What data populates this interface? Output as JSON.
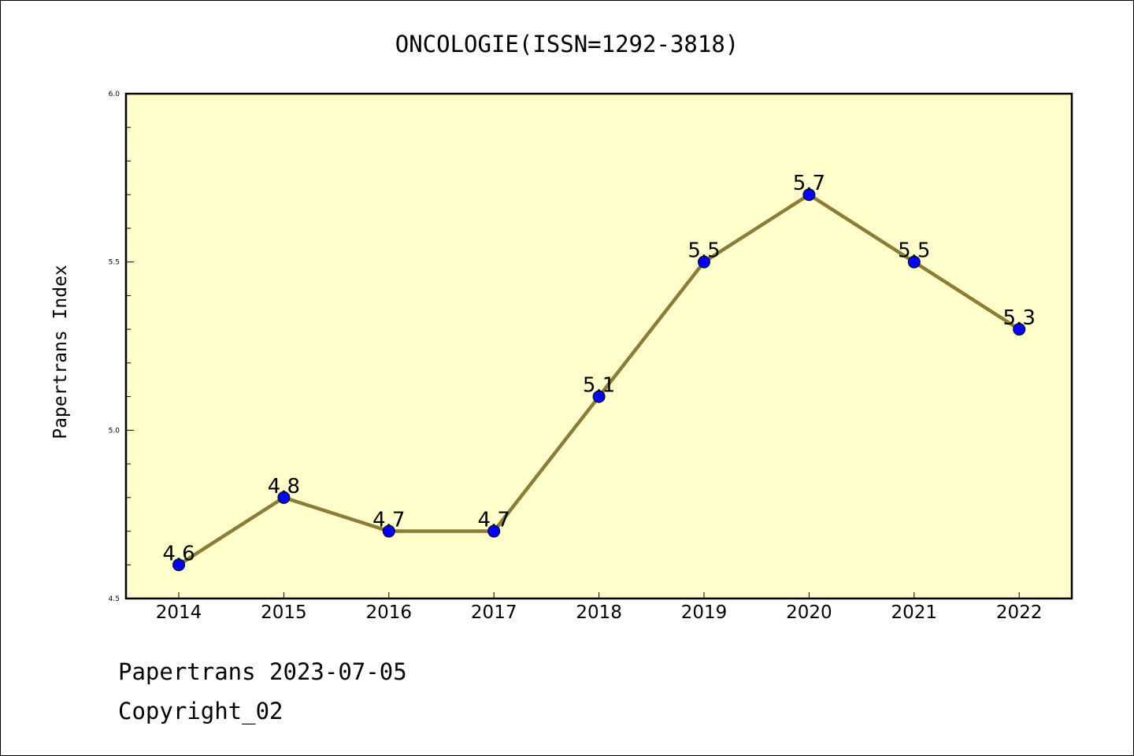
{
  "chart_data": {
    "type": "line",
    "title": "ONCOLOGIE(ISSN=1292-3818)",
    "xlabel": "",
    "ylabel": "Papertrans Index",
    "categories": [
      "2014",
      "2015",
      "2016",
      "2017",
      "2018",
      "2019",
      "2020",
      "2021",
      "2022"
    ],
    "series": [
      {
        "values": [
          4.6,
          4.8,
          4.7,
          4.7,
          5.1,
          5.5,
          5.7,
          5.5,
          5.3
        ]
      }
    ],
    "data_labels": [
      "4.6",
      "4.8",
      "4.7",
      "4.7",
      "5.1",
      "5.5",
      "5.7",
      "5.5",
      "5.3"
    ],
    "ylim": [
      4.5,
      6.0
    ],
    "yticks": [
      "4.5",
      "5.0",
      "5.5",
      "6.0"
    ],
    "minor_ytick_step": 0.1,
    "grid": false,
    "colors": {
      "plot_background": "#ffffcc",
      "line": "#8b7d36",
      "marker": "#0000ff"
    }
  },
  "footer": {
    "line1": "Papertrans 2023-07-05",
    "line2": "Copyright_02"
  }
}
